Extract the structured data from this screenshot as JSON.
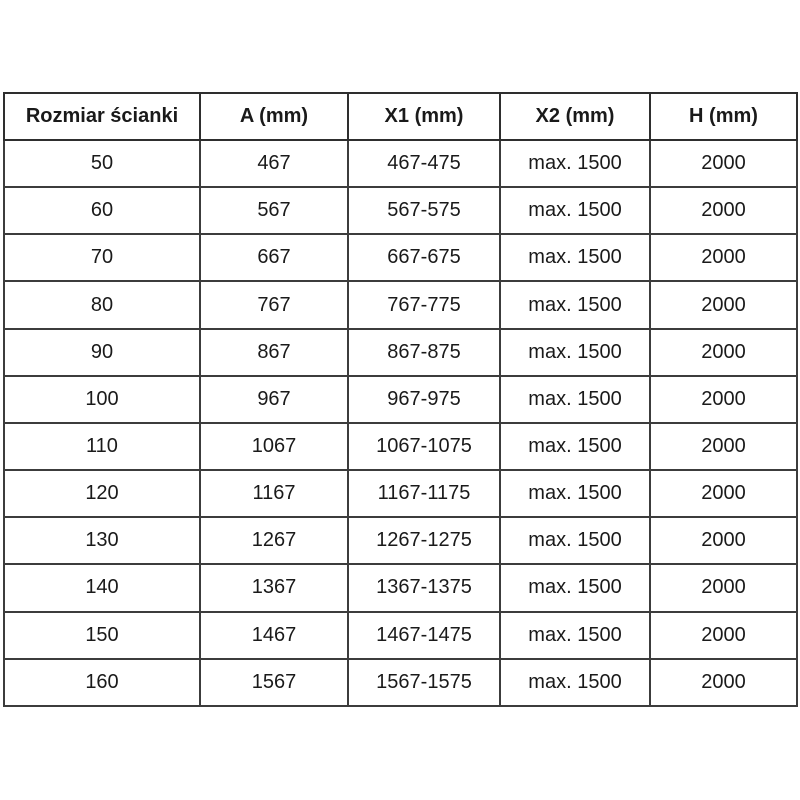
{
  "page": {
    "background": "#ffffff"
  },
  "colors": {
    "page_bg": "#ffffff",
    "text": "#1a1a1a",
    "outer_border": "#101010",
    "grid_border": "#3c3c3c",
    "grid_border_dark": "#2e2e2e"
  },
  "table": {
    "name": "wall-panel-dimensions",
    "columns": [
      {
        "key": "rozmiar",
        "label": "Rozmiar ścianki"
      },
      {
        "key": "a",
        "label": "A (mm)"
      },
      {
        "key": "x1",
        "label": "X1 (mm)"
      },
      {
        "key": "x2",
        "label": "X2 (mm)"
      },
      {
        "key": "h",
        "label": "H (mm)"
      }
    ],
    "rows": [
      {
        "rozmiar": "50",
        "a": "467",
        "x1": "467-475",
        "x2": "max. 1500",
        "h": "2000"
      },
      {
        "rozmiar": "60",
        "a": "567",
        "x1": "567-575",
        "x2": "max. 1500",
        "h": "2000"
      },
      {
        "rozmiar": "70",
        "a": "667",
        "x1": "667-675",
        "x2": "max. 1500",
        "h": "2000"
      },
      {
        "rozmiar": "80",
        "a": "767",
        "x1": "767-775",
        "x2": "max. 1500",
        "h": "2000"
      },
      {
        "rozmiar": "90",
        "a": "867",
        "x1": "867-875",
        "x2": "max. 1500",
        "h": "2000"
      },
      {
        "rozmiar": "100",
        "a": "967",
        "x1": "967-975",
        "x2": "max. 1500",
        "h": "2000"
      },
      {
        "rozmiar": "110",
        "a": "1067",
        "x1": "1067-1075",
        "x2": "max. 1500",
        "h": "2000"
      },
      {
        "rozmiar": "120",
        "a": "1167",
        "x1": "1167-1175",
        "x2": "max. 1500",
        "h": "2000"
      },
      {
        "rozmiar": "130",
        "a": "1267",
        "x1": "1267-1275",
        "x2": "max. 1500",
        "h": "2000"
      },
      {
        "rozmiar": "140",
        "a": "1367",
        "x1": "1367-1375",
        "x2": "max. 1500",
        "h": "2000"
      },
      {
        "rozmiar": "150",
        "a": "1467",
        "x1": "1467-1475",
        "x2": "max. 1500",
        "h": "2000"
      },
      {
        "rozmiar": "160",
        "a": "1567",
        "x1": "1567-1575",
        "x2": "max. 1500",
        "h": "2000"
      }
    ]
  }
}
